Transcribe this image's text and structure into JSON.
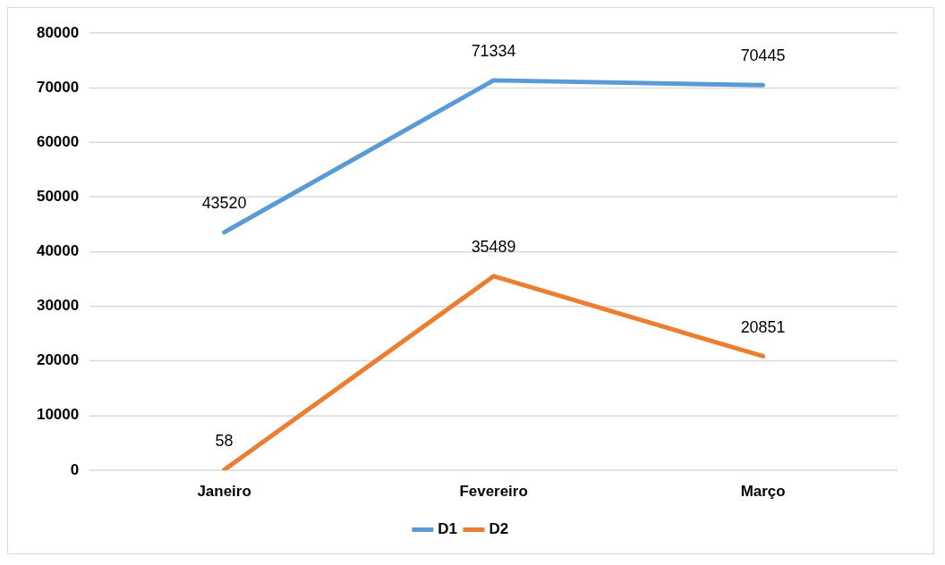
{
  "chart_data": {
    "type": "line",
    "categories": [
      "Janeiro",
      "Fevereiro",
      "Março"
    ],
    "series": [
      {
        "name": "D1",
        "color": "#5b9bd5",
        "values": [
          43520,
          71334,
          70445
        ]
      },
      {
        "name": "D2",
        "color": "#ed7d31",
        "values": [
          58,
          35489,
          20851
        ]
      }
    ],
    "ylim": [
      0,
      80000
    ],
    "yticks": [
      0,
      10000,
      20000,
      30000,
      40000,
      50000,
      60000,
      70000,
      80000
    ],
    "grid": "y",
    "legend": "bottom",
    "data_labels": true,
    "marker": "none",
    "line_style": "solid"
  }
}
